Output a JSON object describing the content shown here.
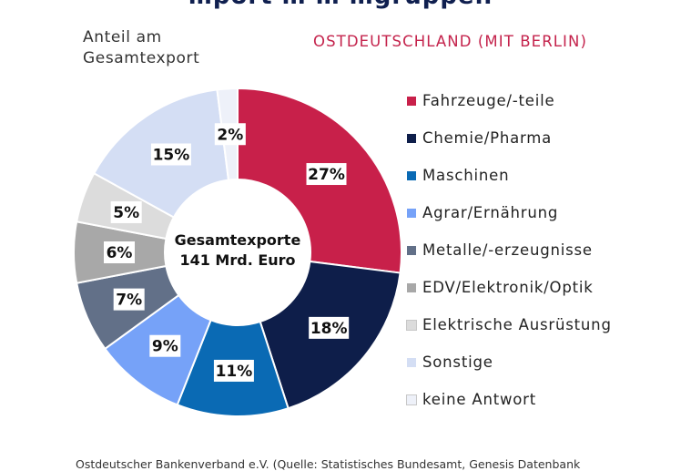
{
  "page": {
    "cut_title": "…port … … …gruppen",
    "measure_label": "Anteil am\nGesamtexport",
    "region_label": "OSTDEUTSCHLAND (MIT BERLIN)",
    "source": "Ostdeutscher Bankenverband e.V. (Quelle: Statistisches Bundesamt, Genesis Datenbank"
  },
  "chart_data": {
    "type": "pie",
    "donut": true,
    "center_label": [
      "Gesamtexporte",
      "141 Mrd. Euro"
    ],
    "legend_position": "right",
    "slices": [
      {
        "name": "Fahrzeuge/-teile",
        "value": 27,
        "label": "27%",
        "color": "#c8204a"
      },
      {
        "name": "Chemie/Pharma",
        "value": 18,
        "label": "18%",
        "color": "#0e1e4a"
      },
      {
        "name": "Maschinen",
        "value": 11,
        "label": "11%",
        "color": "#0a6ab4"
      },
      {
        "name": "Agrar/Ernährung",
        "value": 9,
        "label": "9%",
        "color": "#76a2f8"
      },
      {
        "name": "Metalle/-erzeugnisse",
        "value": 7,
        "label": "7%",
        "color": "#627088"
      },
      {
        "name": "EDV/Elektronik/Optik",
        "value": 6,
        "label": "6%",
        "color": "#a8a8a8"
      },
      {
        "name": "Elektrische Ausrüstung",
        "value": 5,
        "label": "5%",
        "color": "#dcdcdc"
      },
      {
        "name": "Sonstige",
        "value": 15,
        "label": "15%",
        "color": "#d4def4"
      },
      {
        "name": "keine Antwort",
        "value": 2,
        "label": "2%",
        "color": "#eef1f9"
      }
    ]
  }
}
